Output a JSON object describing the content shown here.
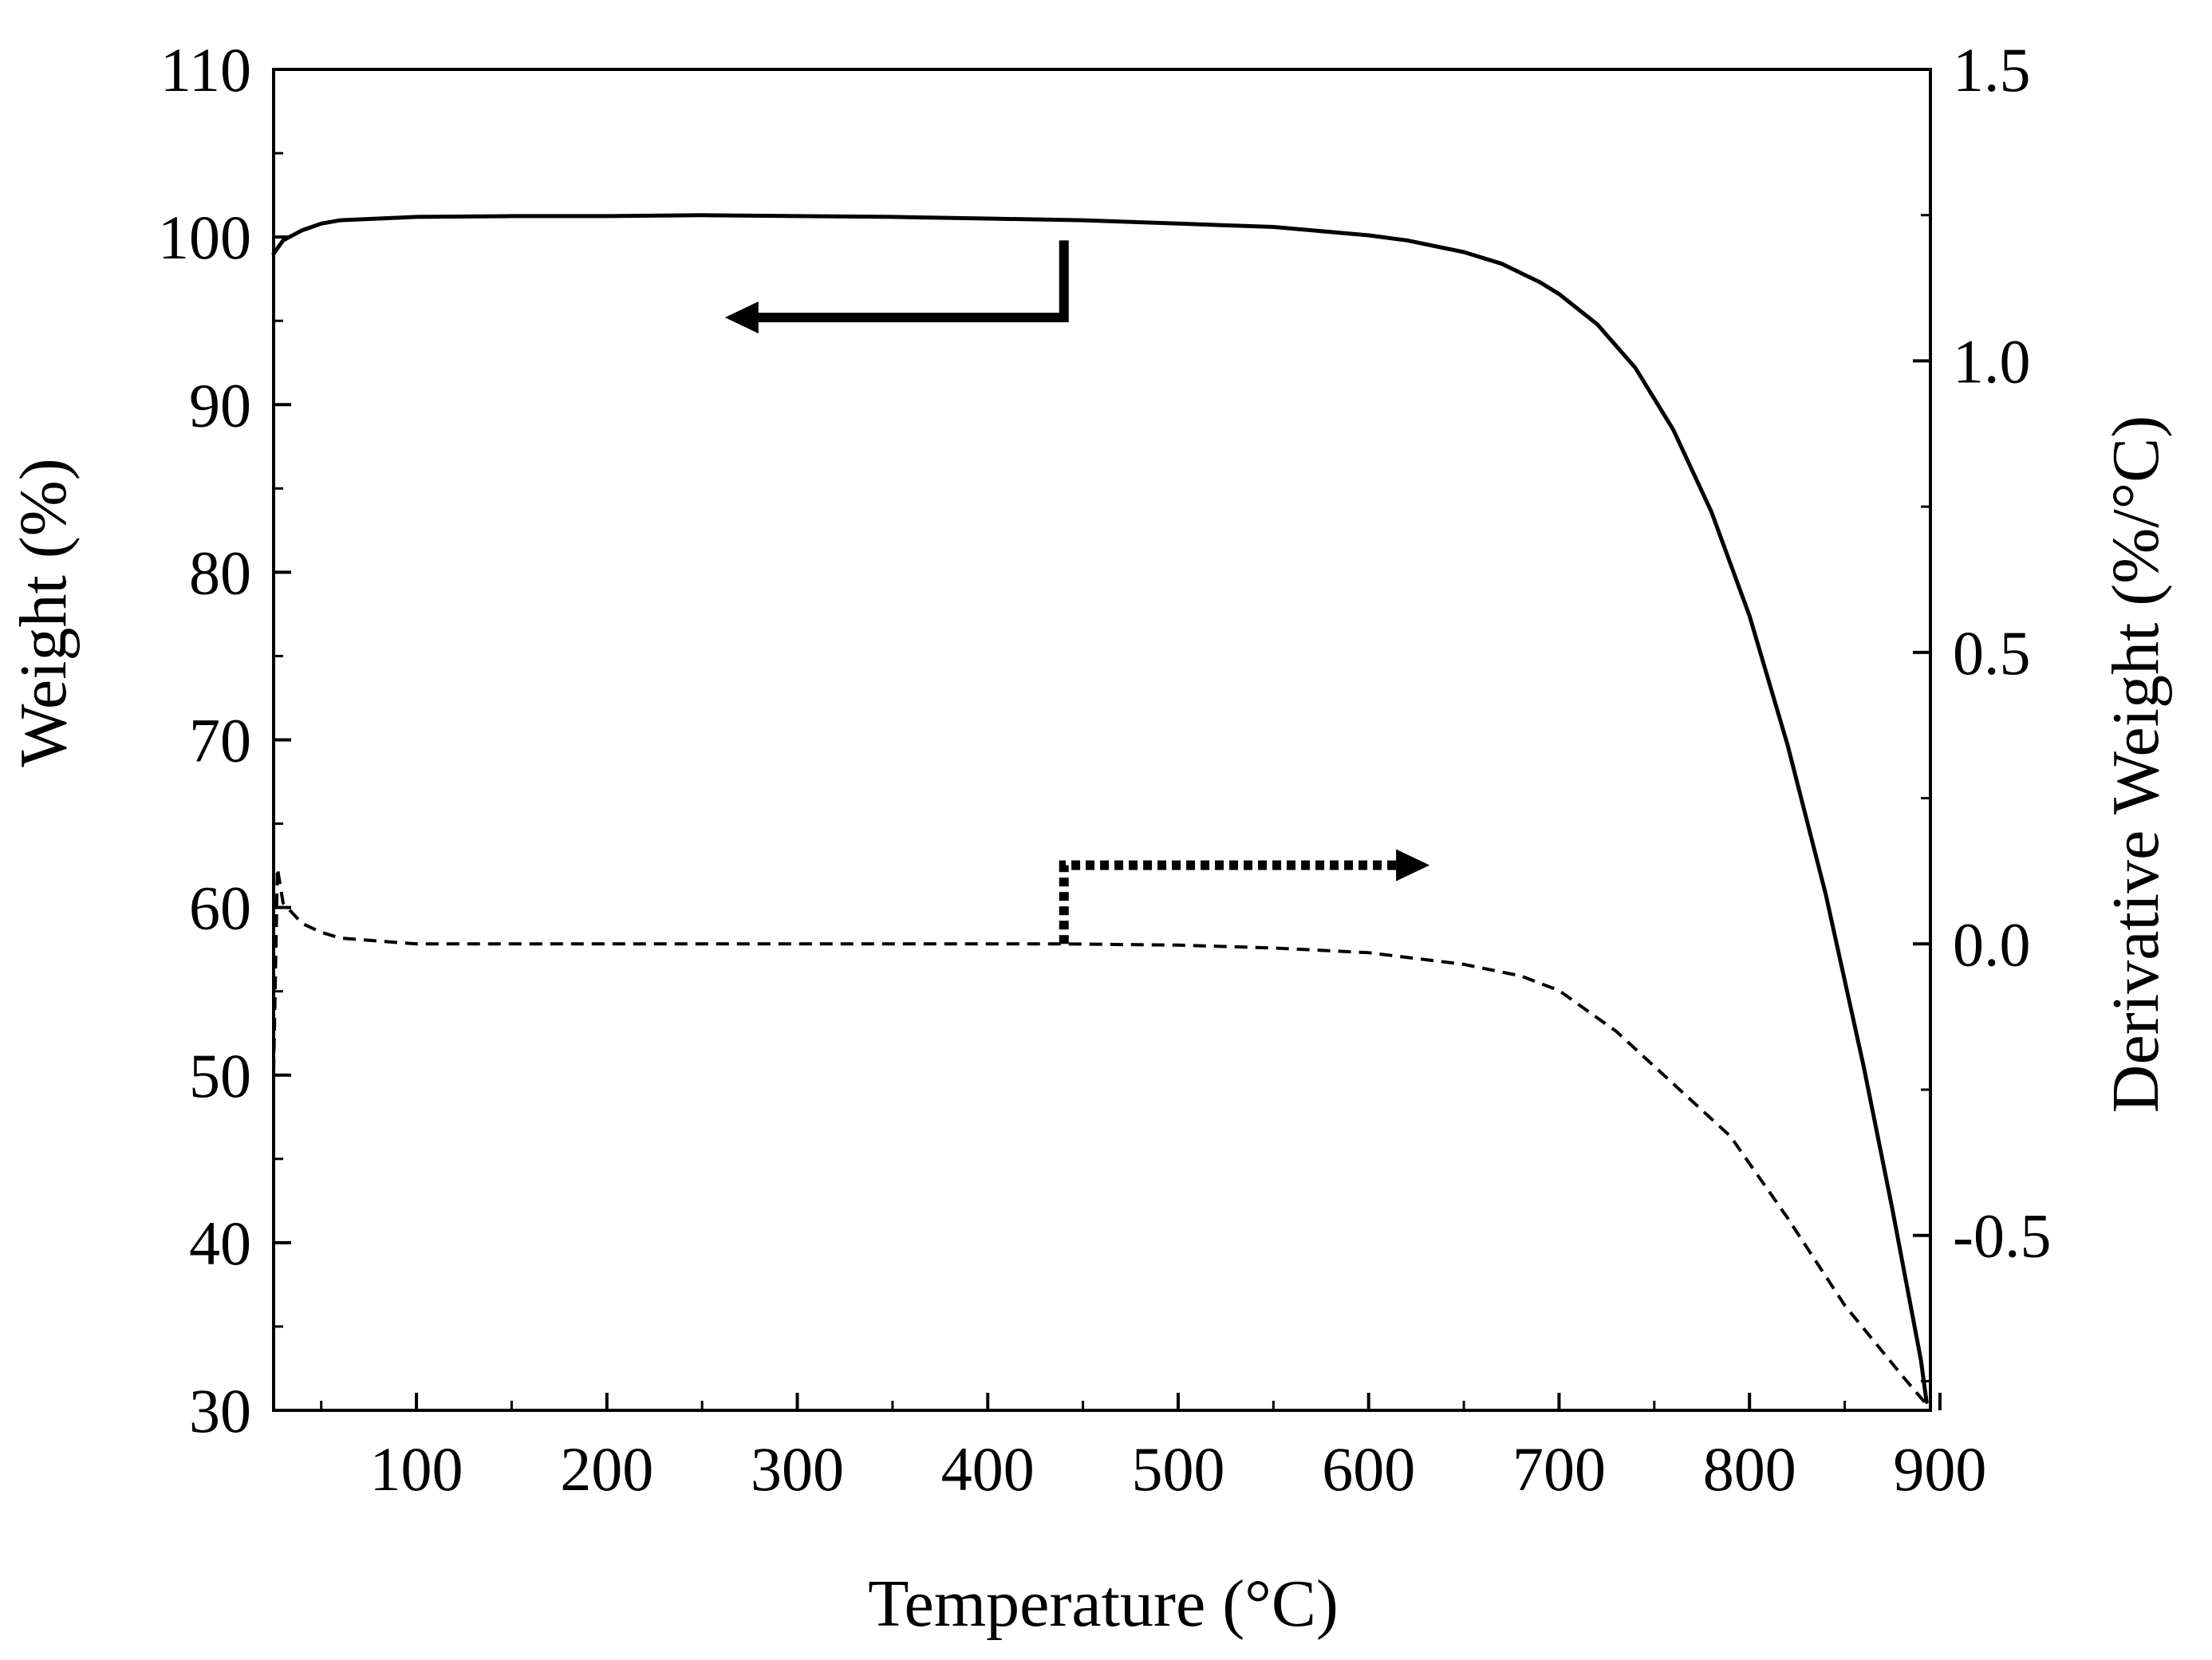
{
  "chart_data": {
    "type": "line",
    "title": "",
    "xlabel": "Temperature (°C)",
    "ylabel_left": "Weight (%)",
    "ylabel_right": "Derivative Weight (%/°C)",
    "xlim": [
      25,
      895
    ],
    "ylim_left": [
      30,
      110
    ],
    "ylim_right": [
      -0.8,
      1.5
    ],
    "x_ticks": [
      100,
      200,
      300,
      400,
      500,
      600,
      700,
      800,
      900
    ],
    "x_tick_labels": [
      "100",
      "200",
      "300",
      "400",
      "500",
      "600",
      "700",
      "800",
      "900"
    ],
    "y_left_ticks": [
      30,
      40,
      50,
      60,
      70,
      80,
      90,
      100,
      110
    ],
    "y_left_tick_labels": [
      "30",
      "40",
      "50",
      "60",
      "70",
      "80",
      "90",
      "100",
      "110"
    ],
    "y_right_ticks": [
      -0.5,
      0.0,
      0.5,
      1.0,
      1.5
    ],
    "y_right_tick_labels": [
      "-0.5",
      "0.0",
      "0.5",
      "1.0",
      "1.5"
    ],
    "grid": false,
    "series": [
      {
        "name": "Weight",
        "axis": "left",
        "style": "solid",
        "color": "#000000",
        "x": [
          25,
          30,
          40,
          50,
          60,
          80,
          100,
          150,
          200,
          250,
          300,
          350,
          400,
          450,
          500,
          550,
          600,
          620,
          650,
          670,
          690,
          700,
          720,
          740,
          760,
          780,
          800,
          820,
          840,
          860,
          875,
          890,
          893
        ],
        "y": [
          99.0,
          99.8,
          100.4,
          100.8,
          101.0,
          101.1,
          101.2,
          101.25,
          101.25,
          101.3,
          101.25,
          101.2,
          101.1,
          101.0,
          100.8,
          100.6,
          100.1,
          99.8,
          99.1,
          98.4,
          97.3,
          96.6,
          94.8,
          92.2,
          88.5,
          83.6,
          77.4,
          69.7,
          60.8,
          50.5,
          42.0,
          33.0,
          30.5
        ]
      },
      {
        "name": "Derivative Weight",
        "axis": "right",
        "style": "dashed",
        "color": "#000000",
        "x": [
          25,
          27,
          30,
          40,
          50,
          60,
          80,
          100,
          150,
          200,
          300,
          400,
          440,
          500,
          550,
          600,
          650,
          680,
          700,
          730,
          760,
          790,
          820,
          850,
          880,
          893
        ],
        "y": [
          -0.22,
          0.13,
          0.07,
          0.035,
          0.02,
          0.01,
          0.005,
          0.0,
          0.0,
          0.0,
          0.0,
          0.0,
          0.0,
          -0.002,
          -0.007,
          -0.015,
          -0.035,
          -0.055,
          -0.08,
          -0.15,
          -0.24,
          -0.33,
          -0.47,
          -0.62,
          -0.74,
          -0.79
        ]
      }
    ],
    "annotations": [
      {
        "type": "arrow",
        "series": "Weight",
        "direction": "left",
        "style": "solid"
      },
      {
        "type": "arrow",
        "series": "Derivative Weight",
        "direction": "right",
        "style": "dotted"
      }
    ]
  }
}
